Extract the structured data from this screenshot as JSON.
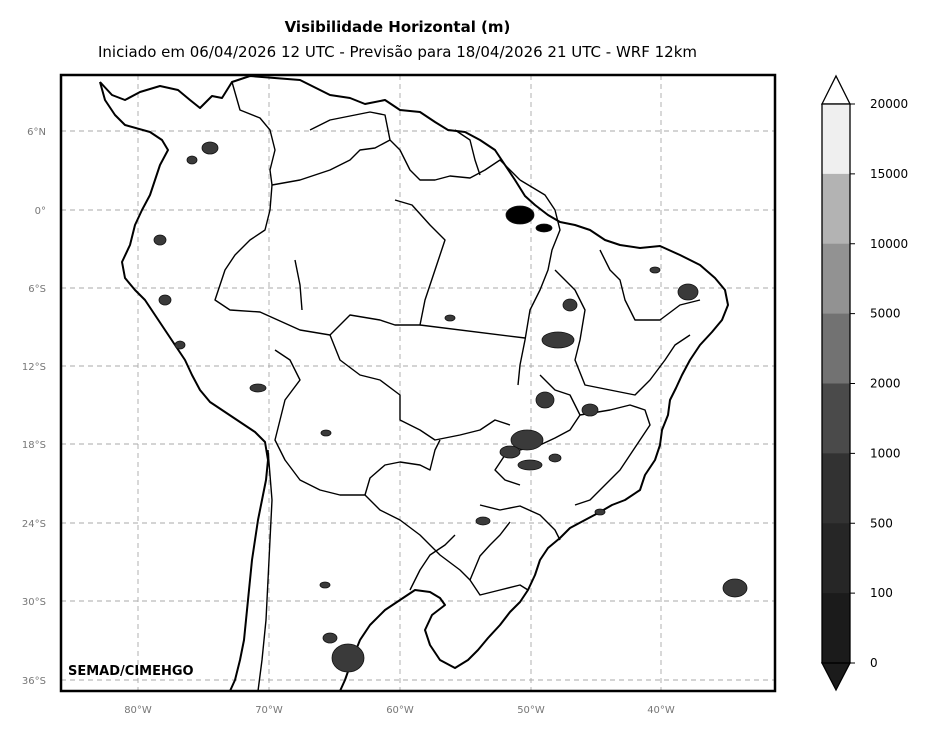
{
  "title": "Visibilidade Horizontal (m)",
  "subtitle": "Iniciado em 06/04/2026 12 UTC - Previsão para 18/04/2026 21 UTC - WRF 12km",
  "credit": "SEMAD/CIMEHGO",
  "longitude_ticks": [
    "80°W",
    "70°W",
    "60°W",
    "50°W",
    "40°W"
  ],
  "latitude_ticks": [
    "6°N",
    "0°",
    "6°S",
    "12°S",
    "18°S",
    "24°S",
    "30°S",
    "36°S"
  ],
  "colorbar": {
    "labels": [
      "20000",
      "15000",
      "10000",
      "5000",
      "2000",
      "1000",
      "500",
      "100",
      "0"
    ],
    "colors": [
      "#efefef",
      "#b3b3b3",
      "#929292",
      "#727272",
      "#4a4a4a",
      "#323232",
      "#262626",
      "#1b1b1b"
    ],
    "extend": "both"
  }
}
